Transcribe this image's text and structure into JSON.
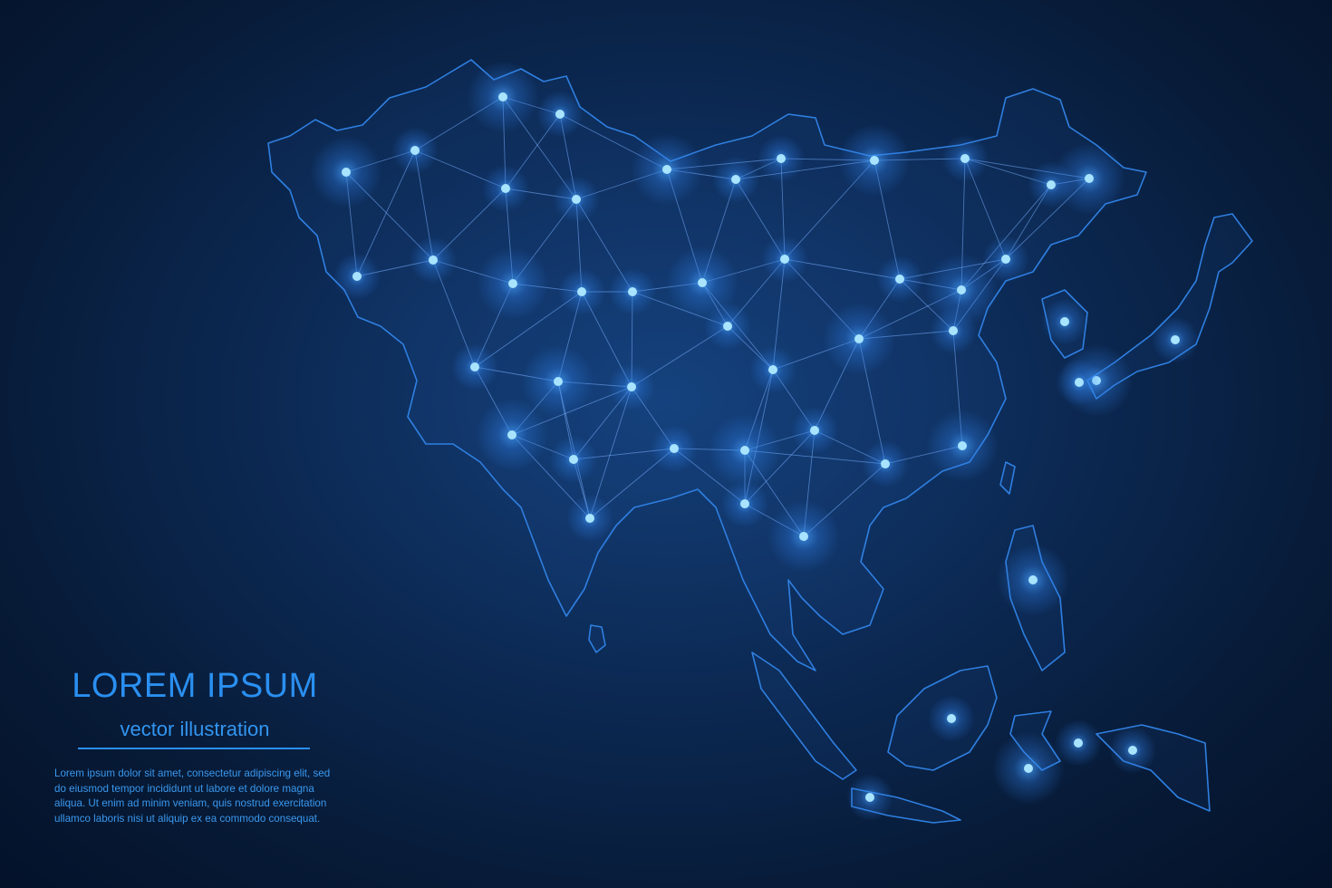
{
  "map": {
    "region": "Asia",
    "style": "low-poly network with glowing nodes",
    "colors": {
      "background": "#0a2448",
      "outline": "#2f7fe0",
      "line": "#6aa8ff",
      "node": "#9fe0ff",
      "glow": "#2f8cff"
    }
  },
  "caption": {
    "title": "LOREM IPSUM",
    "subtitle": "vector illustration",
    "body": "Lorem ipsum dolor sit amet, consectetur adipiscing elit, sed do eiusmod tempor incididunt ut labore et dolore magna aliqua. Ut enim ad minim veniam, quis nostrud exercitation ullamco laboris nisi ut aliquip ex ea commodo consequat."
  }
}
